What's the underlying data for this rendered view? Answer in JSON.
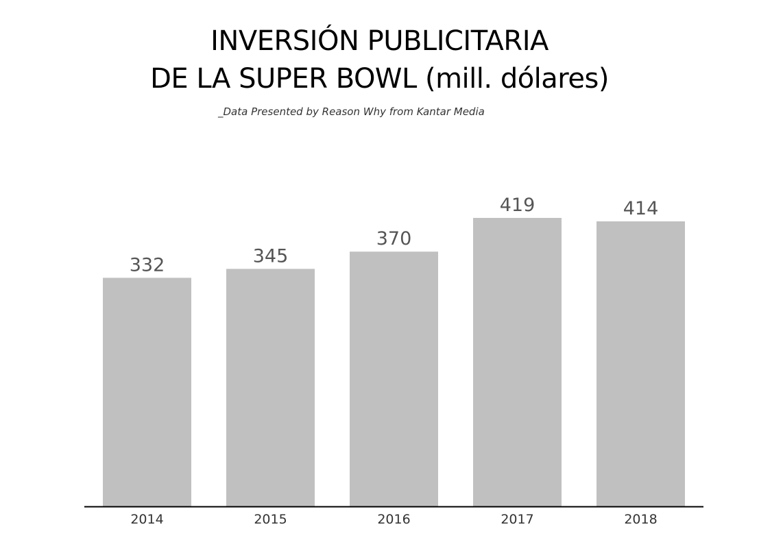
{
  "chart_data": {
    "type": "bar",
    "title_lines": [
      "INVERSIÓN PUBLICITARIA",
      "DE LA SUPER BOWL (mill. dólares)"
    ],
    "subtitle": "_Data Presented by Reason Why from Kantar Media",
    "categories": [
      "2014",
      "2015",
      "2016",
      "2017",
      "2018"
    ],
    "values": [
      332,
      345,
      370,
      419,
      414
    ],
    "value_labels": [
      "332",
      "345",
      "370",
      "419",
      "414"
    ],
    "ylim": [
      0,
      419
    ],
    "grid": false,
    "legend": "none",
    "colors": {
      "bar": "#c0c0c0",
      "label": "#555555",
      "highlight_label": "#e6007e",
      "axis": "#000000"
    },
    "highlight_index": 3
  }
}
